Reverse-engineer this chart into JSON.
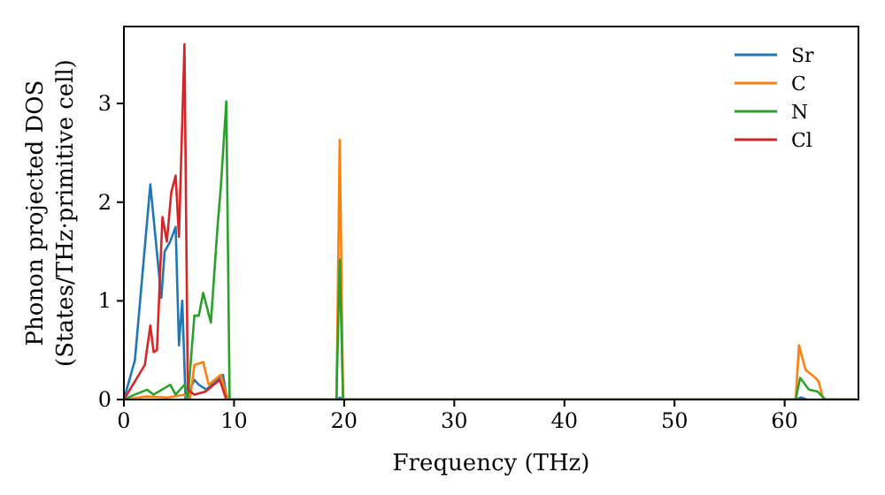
{
  "chart_data": {
    "type": "line",
    "xlabel": "Frequency (THz)",
    "ylabel": "Phonon projected DOS\n(States/THz·primitive cell)",
    "xlim": [
      0,
      66.7
    ],
    "ylim": [
      0,
      3.78
    ],
    "xticks": [
      0,
      10,
      20,
      30,
      40,
      50,
      60
    ],
    "yticks": [
      0,
      1,
      2,
      3
    ],
    "legend": "top right",
    "grid": false,
    "series": [
      {
        "name": "Sr",
        "color": "#1f77b4",
        "x": [
          0,
          1,
          2.4,
          3.4,
          3.7,
          4.2,
          4.7,
          5.0,
          5.3,
          5.6,
          6.4,
          6.8,
          7.5,
          9.0,
          9.3,
          9.6,
          19.3,
          19.6,
          19.9,
          61,
          61.5,
          62,
          66.5
        ],
        "values": [
          0,
          0.4,
          2.18,
          1.03,
          1.5,
          1.6,
          1.75,
          0.55,
          1.0,
          0,
          0.2,
          0.15,
          0.1,
          0.25,
          0.05,
          0,
          0,
          0.02,
          0,
          0,
          0.02,
          0,
          0
        ]
      },
      {
        "name": "C",
        "color": "#ff7f0e",
        "x": [
          0,
          2,
          4,
          5.5,
          6.0,
          6.4,
          7.2,
          7.7,
          8.8,
          9.3,
          9.6,
          19.3,
          19.6,
          19.9,
          61.0,
          61.3,
          61.9,
          62.8,
          63.1,
          63.5,
          66.5
        ],
        "values": [
          0,
          0.03,
          0.02,
          0.05,
          0,
          0.35,
          0.38,
          0.15,
          0.25,
          0.05,
          0,
          0,
          2.63,
          0,
          0,
          0.55,
          0.3,
          0.22,
          0.18,
          0,
          0
        ]
      },
      {
        "name": "N",
        "color": "#2ca02c",
        "x": [
          0,
          1,
          2.1,
          2.7,
          4.2,
          4.7,
          5.5,
          5.8,
          6.4,
          6.8,
          7.2,
          7.9,
          8.5,
          8.8,
          9.3,
          9.6,
          19.3,
          19.6,
          19.9,
          61.0,
          61.4,
          62.2,
          63.0,
          63.7,
          66.5
        ],
        "values": [
          0,
          0.05,
          0.1,
          0.05,
          0.15,
          0.05,
          0.15,
          0,
          0.85,
          0.85,
          1.08,
          0.78,
          1.75,
          2.15,
          3.02,
          0,
          0,
          1.42,
          0,
          0,
          0.22,
          0.1,
          0.08,
          0,
          0
        ]
      },
      {
        "name": "Cl",
        "color": "#d62728",
        "x": [
          0,
          1.9,
          2.4,
          2.7,
          3.0,
          3.5,
          3.9,
          4.3,
          4.7,
          5.0,
          5.5,
          5.8,
          6.4,
          7.4,
          8.7,
          9.3
        ],
        "values": [
          0,
          0.35,
          0.75,
          0.48,
          0.5,
          1.85,
          1.6,
          2.1,
          2.27,
          1.65,
          3.6,
          0.1,
          0.05,
          0.08,
          0.2,
          0
        ]
      }
    ]
  }
}
